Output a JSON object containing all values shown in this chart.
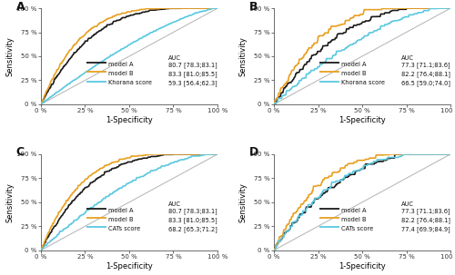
{
  "panels": [
    {
      "label": "A",
      "legend_entries": [
        {
          "name": "model A",
          "auc": "80.7 [78.3;83.1]",
          "color": "#1a1a1a",
          "lw": 1.3
        },
        {
          "name": "model B",
          "auc": "83.3 [81.0;85.5]",
          "color": "#E8A020",
          "lw": 1.3
        },
        {
          "name": "Khorana score",
          "auc": "59.3 [56.4;62.3]",
          "color": "#5BC8E0",
          "lw": 1.3
        }
      ],
      "curve_params": [
        {
          "color": "#1a1a1a",
          "alpha_pow": 0.28,
          "jitter_scale": 0.006,
          "seed": 10
        },
        {
          "color": "#E8A020",
          "alpha_pow": 0.22,
          "jitter_scale": 0.006,
          "seed": 20
        },
        {
          "color": "#5BC8E0",
          "alpha_pow": 0.72,
          "jitter_scale": 0.003,
          "seed": 30
        }
      ]
    },
    {
      "label": "B",
      "legend_entries": [
        {
          "name": "model A",
          "auc": "77.3 [71.1;83.6]",
          "color": "#1a1a1a",
          "lw": 1.3
        },
        {
          "name": "model B",
          "auc": "82.2 [76.4;88.1]",
          "color": "#E8A020",
          "lw": 1.3
        },
        {
          "name": "Khorana score",
          "auc": "66.5 [59.0;74.0]",
          "color": "#5BC8E0",
          "lw": 1.3
        }
      ],
      "curve_params": [
        {
          "color": "#1a1a1a",
          "alpha_pow": 0.38,
          "jitter_scale": 0.018,
          "seed": 11
        },
        {
          "color": "#E8A020",
          "alpha_pow": 0.27,
          "jitter_scale": 0.018,
          "seed": 21
        },
        {
          "color": "#5BC8E0",
          "alpha_pow": 0.6,
          "jitter_scale": 0.012,
          "seed": 31
        }
      ]
    },
    {
      "label": "C",
      "legend_entries": [
        {
          "name": "model A",
          "auc": "80.7 [78.3;83.1]",
          "color": "#1a1a1a",
          "lw": 1.3
        },
        {
          "name": "model B",
          "auc": "83.3 [81.0;85.5]",
          "color": "#E8A020",
          "lw": 1.3
        },
        {
          "name": "CATs score",
          "auc": "68.2 [65.3;71.2]",
          "color": "#5BC8E0",
          "lw": 1.3
        }
      ],
      "curve_params": [
        {
          "color": "#1a1a1a",
          "alpha_pow": 0.28,
          "jitter_scale": 0.006,
          "seed": 12
        },
        {
          "color": "#E8A020",
          "alpha_pow": 0.22,
          "jitter_scale": 0.006,
          "seed": 22
        },
        {
          "color": "#5BC8E0",
          "alpha_pow": 0.58,
          "jitter_scale": 0.006,
          "seed": 32
        }
      ]
    },
    {
      "label": "D",
      "legend_entries": [
        {
          "name": "model A",
          "auc": "77.3 [71.1;83.6]",
          "color": "#1a1a1a",
          "lw": 1.3
        },
        {
          "name": "model B",
          "auc": "82.2 [76.4;88.1]",
          "color": "#E8A020",
          "lw": 1.3
        },
        {
          "name": "CATs score",
          "auc": "77.4 [69.9;84.9]",
          "color": "#5BC8E0",
          "lw": 1.3
        }
      ],
      "curve_params": [
        {
          "color": "#1a1a1a",
          "alpha_pow": 0.38,
          "jitter_scale": 0.018,
          "seed": 13
        },
        {
          "color": "#E8A020",
          "alpha_pow": 0.27,
          "jitter_scale": 0.018,
          "seed": 23
        },
        {
          "color": "#5BC8E0",
          "alpha_pow": 0.37,
          "jitter_scale": 0.018,
          "seed": 33
        }
      ]
    }
  ],
  "xlabel": "1-Specificity",
  "ylabel": "Sensitivity",
  "xtick_labels": [
    "0 %",
    "25 %",
    "50 %",
    "75 %",
    "100 %"
  ],
  "ytick_labels": [
    "0 %",
    "25 %",
    "50 %",
    "75 %",
    "100 %"
  ],
  "diagonal_color": "#BBBBBB",
  "bg_color": "#FFFFFF",
  "fontsize_label": 6.0,
  "fontsize_tick": 5.0,
  "fontsize_legend": 4.8,
  "fontsize_panel_label": 9.0,
  "fontsize_auc_header": 5.0
}
